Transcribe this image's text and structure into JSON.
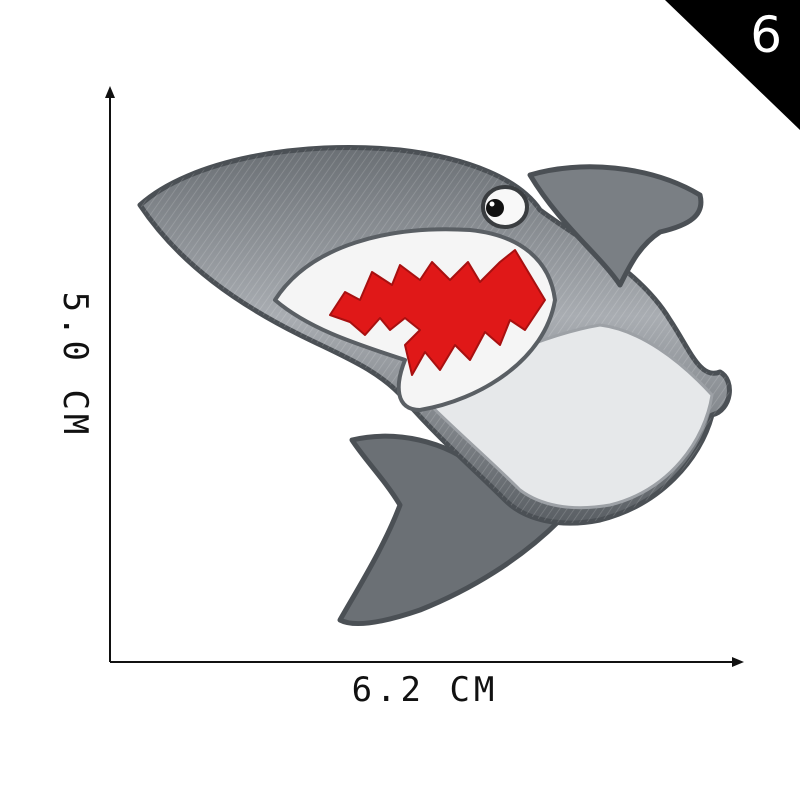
{
  "badge": {
    "number": "6"
  },
  "dimensions": {
    "height_label": "5.0 CM",
    "width_label": "6.2 CM"
  },
  "colors": {
    "shark_body": "#5c6166",
    "shark_light": "#b4b8bd",
    "belly": "#e6e8ea",
    "mouth_red": "#e01818",
    "teeth": "#f5f5f5",
    "axis": "#111111"
  }
}
